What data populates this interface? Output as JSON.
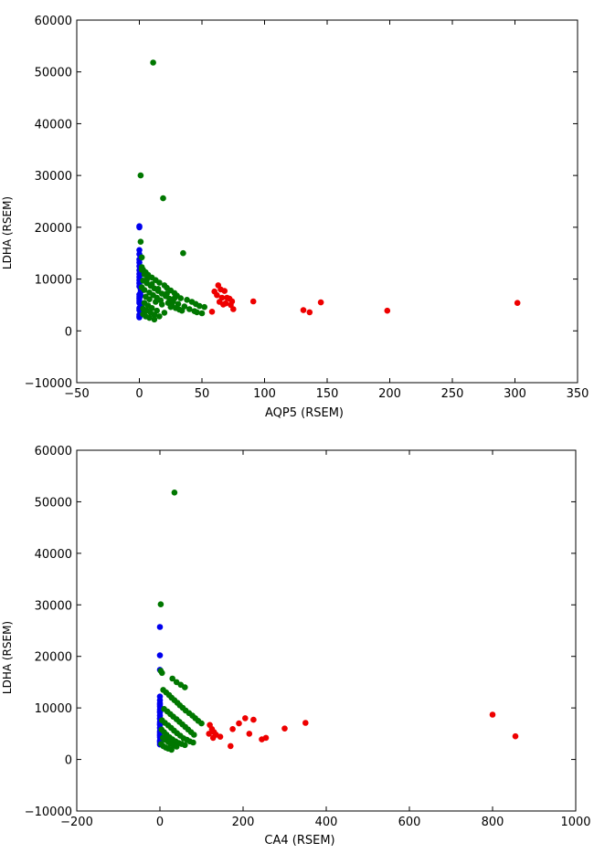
{
  "colors": {
    "blue": "#0000ee",
    "green": "#007700",
    "red": "#ee0000"
  },
  "chart_data": [
    {
      "type": "scatter",
      "title": "",
      "xlabel": "AQP5 (RSEM)",
      "ylabel": "LDHA (RSEM)",
      "xlim": [
        -50,
        350
      ],
      "ylim": [
        -10000,
        60000
      ],
      "xticks": [
        -50,
        0,
        50,
        100,
        150,
        200,
        250,
        300,
        350
      ],
      "yticks": [
        -10000,
        0,
        10000,
        20000,
        30000,
        40000,
        50000,
        60000
      ],
      "grid": false,
      "series": [
        {
          "color": "blue",
          "x": [
            0,
            0,
            0,
            0,
            0,
            0,
            0,
            0,
            0,
            0,
            0,
            0,
            0,
            1,
            1,
            0,
            0,
            0,
            0,
            0,
            1,
            1,
            0,
            0,
            1,
            1,
            0,
            0,
            0,
            1
          ],
          "y": [
            20200,
            20000,
            15600,
            14800,
            13800,
            13200,
            12500,
            11700,
            11000,
            10400,
            9800,
            9200,
            8600,
            8000,
            7500,
            7000,
            6600,
            6200,
            5800,
            5400,
            5000,
            4700,
            4400,
            4000,
            3700,
            3400,
            3100,
            2800,
            2600,
            6800
          ]
        },
        {
          "color": "green",
          "x": [
            11,
            1,
            19,
            1,
            35,
            2,
            2,
            3,
            5,
            7,
            10,
            13,
            16,
            20,
            22,
            25,
            28,
            30,
            33,
            38,
            42,
            45,
            48,
            52,
            3,
            6,
            9,
            12,
            15,
            18,
            21,
            24,
            27,
            31,
            36,
            40,
            44,
            2,
            4,
            8,
            11,
            14,
            17,
            23,
            26,
            29,
            34,
            46,
            50,
            5,
            8,
            13,
            18,
            25,
            32,
            4,
            7,
            10,
            14,
            20,
            3,
            6,
            9,
            12,
            16,
            3,
            5,
            8,
            12,
            2,
            4,
            6,
            10,
            15,
            22,
            28
          ],
          "y": [
            51800,
            30000,
            25600,
            17200,
            15000,
            14200,
            12300,
            11800,
            11300,
            10800,
            10300,
            9800,
            9300,
            8800,
            8300,
            7800,
            7300,
            6800,
            6300,
            6000,
            5600,
            5200,
            4800,
            4600,
            9700,
            9200,
            8700,
            8200,
            7700,
            7200,
            6700,
            6200,
            5700,
            5200,
            4700,
            4200,
            3800,
            8400,
            7900,
            7400,
            6900,
            6400,
            5900,
            5400,
            4900,
            4400,
            3900,
            3600,
            3400,
            6600,
            6100,
            5600,
            5100,
            4600,
            4100,
            5400,
            4900,
            4400,
            3900,
            3500,
            4300,
            3900,
            3500,
            3100,
            2800,
            3200,
            2800,
            2500,
            2200,
            11800,
            10900,
            9900,
            9000,
            8100,
            7200,
            6300
          ]
        },
        {
          "color": "red",
          "x": [
            63,
            65,
            68,
            60,
            62,
            66,
            70,
            72,
            74,
            64,
            67,
            69,
            73,
            75,
            58,
            91,
            131,
            136,
            145,
            198,
            302
          ],
          "y": [
            8800,
            8000,
            7700,
            7600,
            6900,
            6400,
            6400,
            6200,
            5700,
            5600,
            5100,
            5300,
            5000,
            4200,
            3700,
            5700,
            4000,
            3600,
            5500,
            3900,
            5400
          ]
        }
      ]
    },
    {
      "type": "scatter",
      "title": "",
      "xlabel": "CA4 (RSEM)",
      "ylabel": "LDHA (RSEM)",
      "xlim": [
        -200,
        1000
      ],
      "ylim": [
        -10000,
        60000
      ],
      "xticks": [
        -200,
        0,
        200,
        400,
        600,
        800,
        1000
      ],
      "yticks": [
        -10000,
        0,
        10000,
        20000,
        30000,
        40000,
        50000,
        60000
      ],
      "grid": false,
      "series": [
        {
          "color": "blue",
          "x": [
            0,
            0,
            0,
            0,
            0,
            0,
            0,
            0,
            0,
            0,
            0,
            0,
            0,
            0,
            0,
            0,
            0,
            0,
            0,
            0,
            0,
            0,
            0,
            0,
            0,
            0,
            0
          ],
          "y": [
            25700,
            20200,
            17400,
            12200,
            11500,
            10900,
            10300,
            9700,
            9100,
            8500,
            7900,
            7300,
            6700,
            6100,
            5500,
            4900,
            4300,
            3700,
            3300,
            2900,
            6900,
            5200,
            8000,
            4600,
            9300,
            10600,
            3500
          ]
        },
        {
          "color": "green",
          "x": [
            35,
            2,
            2,
            5,
            30,
            40,
            50,
            60,
            8,
            15,
            22,
            28,
            35,
            42,
            48,
            55,
            62,
            70,
            78,
            85,
            92,
            100,
            10,
            18,
            25,
            32,
            40,
            47,
            54,
            61,
            68,
            75,
            82,
            5,
            12,
            20,
            27,
            34,
            41,
            49,
            57,
            65,
            72,
            80,
            4,
            10,
            16,
            23,
            30,
            38,
            45,
            52,
            60,
            7,
            13,
            20,
            26,
            33,
            40,
            3,
            8,
            14,
            20,
            28
          ],
          "y": [
            51800,
            30100,
            17200,
            16800,
            15700,
            15000,
            14500,
            14000,
            13500,
            13000,
            12500,
            12000,
            11500,
            11000,
            10500,
            10000,
            9500,
            9000,
            8500,
            8000,
            7500,
            7000,
            9800,
            9300,
            8800,
            8300,
            7800,
            7300,
            6800,
            6300,
            5800,
            5300,
            4800,
            7600,
            7100,
            6600,
            6100,
            5600,
            5100,
            4600,
            4100,
            3800,
            3500,
            3300,
            5800,
            5300,
            4800,
            4300,
            3900,
            3500,
            3200,
            3000,
            2800,
            4200,
            3800,
            3400,
            3000,
            2700,
            2500,
            3000,
            2600,
            2300,
            2100,
            1900
          ]
        },
        {
          "color": "red",
          "x": [
            120,
            125,
            130,
            135,
            118,
            128,
            145,
            170,
            175,
            190,
            205,
            215,
            225,
            245,
            255,
            300,
            350,
            800,
            855
          ],
          "y": [
            6700,
            5900,
            5300,
            4800,
            5000,
            4200,
            4400,
            2600,
            5900,
            7000,
            8000,
            5000,
            7700,
            3900,
            4200,
            6000,
            7100,
            8700,
            4500
          ]
        }
      ]
    }
  ]
}
